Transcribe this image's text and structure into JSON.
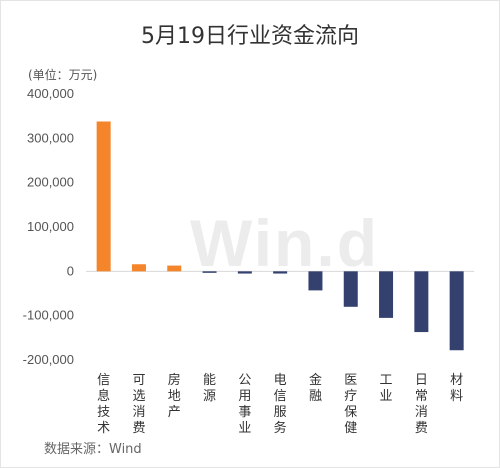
{
  "title": "5月19日行业资金流向",
  "unit_label": "(单位：万元)",
  "source": "数据来源：Wind",
  "watermark": "Win.d",
  "colors": {
    "positive": "#F5852B",
    "negative": "#34406E",
    "axis_text": "#555555"
  },
  "chart_data": {
    "type": "bar",
    "title": "5月19日行业资金流向",
    "ylabel": "(单位：万元)",
    "ylim": [
      -200000,
      400000
    ],
    "yticks": [
      400000,
      300000,
      200000,
      100000,
      0,
      -100000,
      -200000
    ],
    "ytick_labels": [
      "400,000",
      "300,000",
      "200,000",
      "100,000",
      "0",
      "-100,000",
      "-200,000"
    ],
    "categories": [
      "信息技术",
      "可选消费",
      "房地产",
      "能源",
      "公用事业",
      "电信服务",
      "金融",
      "医疗保健",
      "工业",
      "日常消费",
      "材料"
    ],
    "values": [
      338000,
      16000,
      13000,
      -2000,
      -5000,
      -5000,
      -43000,
      -80000,
      -105000,
      -137000,
      -178000
    ]
  }
}
